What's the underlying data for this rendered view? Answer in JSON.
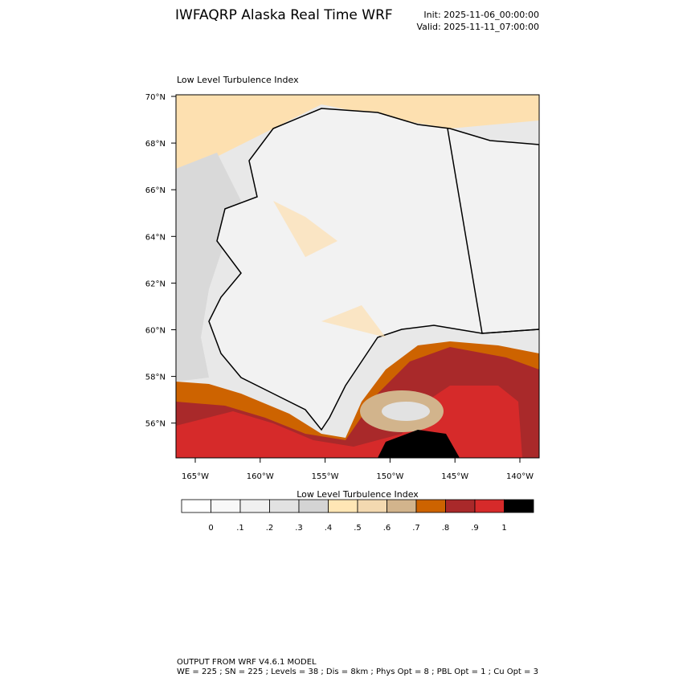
{
  "header": {
    "title": "IWFAQRP Alaska Real Time WRF",
    "init": "Init: 2025-11-06_00:00:00",
    "valid": "Valid: 2025-11-11_07:00:00"
  },
  "map": {
    "title": "Low Level Turbulence Index",
    "lat_labels": [
      "70°N",
      "68°N",
      "66°N",
      "64°N",
      "62°N",
      "60°N",
      "58°N",
      "56°N"
    ],
    "lon_labels": [
      "165°W",
      "160°W",
      "155°W",
      "150°W",
      "145°W",
      "140°W"
    ]
  },
  "colorbar": {
    "title": "Low Level Turbulence Index",
    "colors": [
      "#ffffff",
      "#f8f8f8",
      "#f0f0f0",
      "#e2e2e2",
      "#d4d4d4",
      "#ffe6b5",
      "#f3d9b0",
      "#d2b48c",
      "#cd6300",
      "#a9292a",
      "#d62a2a",
      "#000000"
    ],
    "labels": [
      "0",
      ".1",
      ".2",
      ".3",
      ".4",
      ".5",
      ".6",
      ".7",
      ".8",
      ".9",
      "1"
    ]
  },
  "footer": {
    "line1": "OUTPUT FROM WRF V4.6.1 MODEL",
    "line2": "WE = 225 ; SN = 225 ; Levels = 38 ; Dis = 8km ; Phys Opt = 8 ; PBL Opt = 1 ; Cu Opt = 3"
  }
}
